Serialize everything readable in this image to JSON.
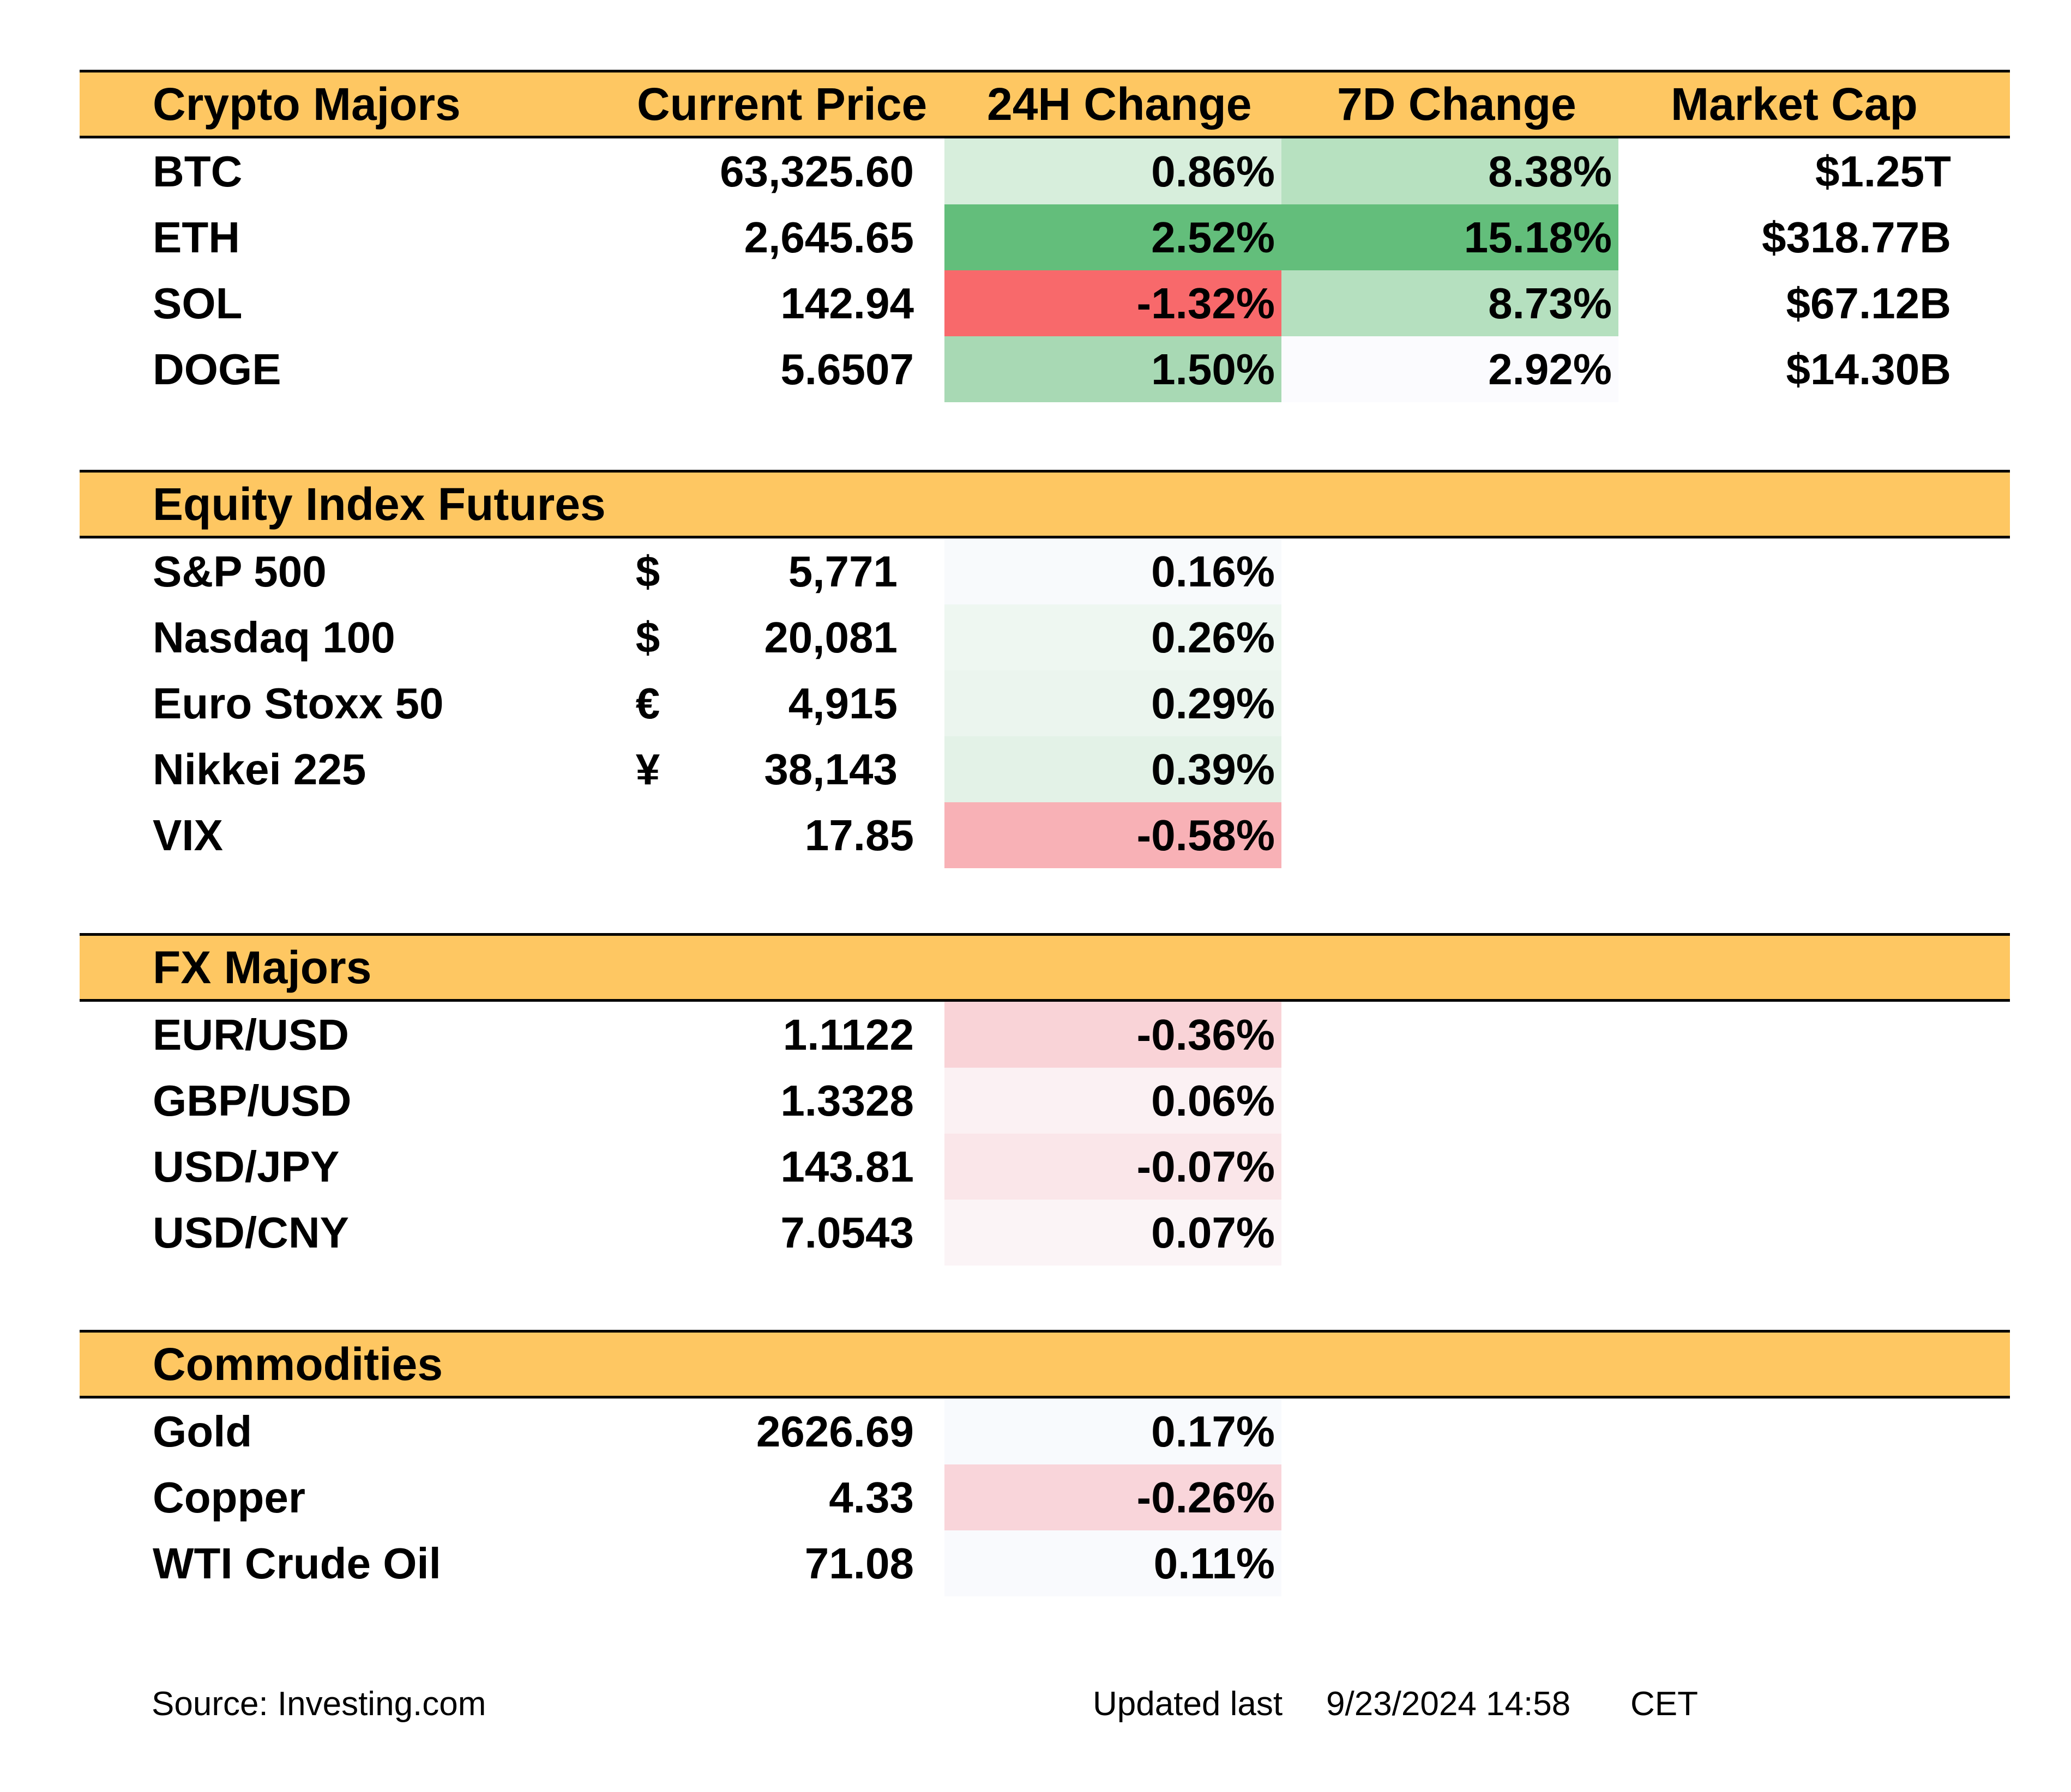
{
  "crypto": {
    "headers": {
      "name": "Crypto Majors",
      "price": "Current Price",
      "change_24h": "24H Change",
      "change_7d": "7D Change",
      "market_cap": "Market Cap"
    },
    "rows": [
      {
        "name": "BTC",
        "price": "63,325.60",
        "change_24h": "0.86%",
        "change_7d": "8.38%",
        "market_cap": "$1.25T",
        "bg_24h": "#d7eedc",
        "bg_7d": "#b7e1c0"
      },
      {
        "name": "ETH",
        "price": "2,645.65",
        "change_24h": "2.52%",
        "change_7d": "15.18%",
        "market_cap": "$318.77B",
        "bg_24h": "#63be7b",
        "bg_7d": "#63be7b"
      },
      {
        "name": "SOL",
        "price": "142.94",
        "change_24h": "-1.32%",
        "change_7d": "8.73%",
        "market_cap": "$67.12B",
        "bg_24h": "#f8696b",
        "bg_7d": "#b5e0bf"
      },
      {
        "name": "DOGE",
        "price": "5.6507",
        "change_24h": "1.50%",
        "change_7d": "2.92%",
        "market_cap": "$14.30B",
        "bg_24h": "#a8d9b4",
        "bg_7d": "#fbfbfe"
      }
    ]
  },
  "equity": {
    "title": "Equity Index Futures",
    "rows": [
      {
        "name": "S&P 500",
        "currency": "$",
        "price": "5,771",
        "change_24h": "0.16%",
        "bg_24h": "#f8fafc"
      },
      {
        "name": "Nasdaq 100",
        "currency": "$",
        "price": "20,081",
        "change_24h": "0.26%",
        "bg_24h": "#eef7f1"
      },
      {
        "name": "Euro Stoxx 50",
        "currency": "€",
        "price": "4,915",
        "change_24h": "0.29%",
        "bg_24h": "#ebf5ee"
      },
      {
        "name": "Nikkei 225",
        "currency": "¥",
        "price": "38,143",
        "change_24h": "0.39%",
        "bg_24h": "#e3f2e7"
      },
      {
        "name": "VIX",
        "currency": "",
        "price": "17.85",
        "change_24h": "-0.58%",
        "bg_24h": "#f8b1b6"
      }
    ]
  },
  "fx": {
    "title": "FX Majors",
    "rows": [
      {
        "name": "EUR/USD",
        "price": "1.1122",
        "change_24h": "-0.36%",
        "bg_24h": "#f9d3d7"
      },
      {
        "name": "GBP/USD",
        "price": "1.3328",
        "change_24h": "0.06%",
        "bg_24h": "#fbf1f3"
      },
      {
        "name": "USD/JPY",
        "price": "143.81",
        "change_24h": "-0.07%",
        "bg_24h": "#fae6e9"
      },
      {
        "name": "USD/CNY",
        "price": "7.0543",
        "change_24h": "0.07%",
        "bg_24h": "#fbf4f6"
      }
    ]
  },
  "commodities": {
    "title": "Commodities",
    "rows": [
      {
        "name": "Gold",
        "price": "2626.69",
        "change_24h": "0.17%",
        "bg_24h": "#f8fafd"
      },
      {
        "name": "Copper",
        "price": "4.33",
        "change_24h": "-0.26%",
        "bg_24h": "#f9d5da"
      },
      {
        "name": "WTI Crude Oil",
        "price": "71.08",
        "change_24h": "0.11%",
        "bg_24h": "#f9fafd"
      }
    ]
  },
  "footer": {
    "source": "Source: Investing.com",
    "updated_label": "Updated last",
    "updated_value": "9/23/2024 14:58",
    "timezone": "CET"
  },
  "colors": {
    "header_fill": "#fec762",
    "positive_strong": "#63be7b",
    "negative_strong": "#f8696b"
  }
}
